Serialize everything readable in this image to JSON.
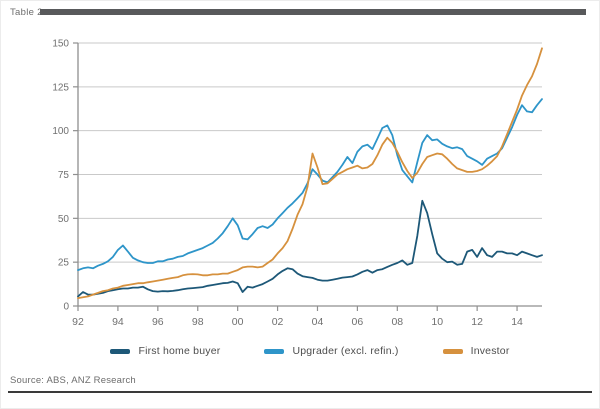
{
  "page": {
    "label": "Table 2",
    "source": "Source: ABS, ANZ Research"
  },
  "colors": {
    "header_bar": "#58595b",
    "gridline": "#c9c9c9",
    "axis": "#8f8f8f",
    "tick_label": "#707070",
    "first_home_buyer": "#1d5878",
    "upgrader": "#2e95c9",
    "investor": "#d6913e"
  },
  "chart_data": {
    "type": "line",
    "title": "",
    "xlabel": "",
    "ylabel": "",
    "ylim": [
      0,
      150
    ],
    "y_ticks": [
      0,
      25,
      50,
      75,
      100,
      125,
      150
    ],
    "xlim": [
      1992,
      2015.25
    ],
    "x_start": 1992,
    "x_step": 0.25,
    "x_tick_years": [
      1992,
      1994,
      1996,
      1998,
      2000,
      2002,
      2004,
      2006,
      2008,
      2010,
      2012,
      2014
    ],
    "x_tick_labels": [
      "92",
      "94",
      "96",
      "98",
      "00",
      "02",
      "04",
      "06",
      "08",
      "10",
      "12",
      "14"
    ],
    "grid": "horizontal",
    "legend_position": "bottom",
    "series": [
      {
        "name": "First home buyer",
        "color": "#1d5878",
        "values": [
          5.5,
          8,
          6.5,
          6.5,
          7,
          7.5,
          8.5,
          9,
          9.5,
          10,
          10,
          10.5,
          10.5,
          11,
          9.5,
          8.5,
          8.2,
          8.5,
          8.4,
          8.6,
          9,
          9.5,
          10,
          10.2,
          10.5,
          10.8,
          11.5,
          12,
          12.5,
          13,
          13.2,
          14,
          13,
          8,
          11,
          10.5,
          11.5,
          12.5,
          14,
          15.5,
          18,
          20,
          21.5,
          21,
          18.5,
          17,
          16.5,
          16,
          15,
          14.5,
          14.5,
          15,
          15.5,
          16.2,
          16.5,
          16.8,
          18,
          19.5,
          20.5,
          19,
          20.5,
          21,
          22.3,
          23.5,
          24.5,
          26,
          23.5,
          24.5,
          40,
          60,
          53,
          41,
          30,
          27,
          25,
          25.3,
          23.5,
          24,
          31,
          32,
          28,
          33,
          29,
          28,
          31,
          31,
          30,
          30,
          29,
          31,
          30,
          29,
          28,
          29
        ]
      },
      {
        "name": "Upgrader (excl. refin.)",
        "color": "#2e95c9",
        "values": [
          20.5,
          21.5,
          22,
          21.5,
          23,
          24,
          25.5,
          28,
          32,
          34.5,
          31,
          27.5,
          26,
          25,
          24.5,
          24.5,
          25.5,
          25.5,
          26.5,
          27,
          28,
          28.5,
          30,
          31,
          32,
          33,
          34.5,
          36,
          38.5,
          41.5,
          45.5,
          50,
          46,
          38.5,
          38,
          41,
          44.5,
          45.5,
          44.5,
          46.5,
          50,
          53,
          56,
          58.5,
          61.5,
          64.5,
          70,
          78,
          75,
          71.5,
          70.5,
          73.5,
          76.5,
          80.5,
          85,
          81.5,
          88,
          91,
          92,
          89.5,
          95.5,
          101.5,
          103,
          97.5,
          86,
          77.5,
          74,
          70.5,
          82,
          93,
          97.5,
          94.5,
          95,
          92.5,
          91,
          90,
          90.5,
          89.5,
          85.5,
          84,
          82.5,
          80.5,
          84,
          85.5,
          87,
          90,
          96,
          102,
          109,
          114.5,
          111,
          110.5,
          114.5,
          118
        ]
      },
      {
        "name": "Investor",
        "color": "#d6913e",
        "values": [
          4.5,
          5,
          5.5,
          6.5,
          7.5,
          8.5,
          9,
          10,
          10.5,
          11.5,
          12,
          12.5,
          13,
          13,
          13.5,
          14,
          14.5,
          15,
          15.5,
          16,
          16.5,
          17.5,
          18,
          18.2,
          18,
          17.5,
          17.5,
          18,
          18,
          18.5,
          18.5,
          19.5,
          20.5,
          22,
          22.5,
          22.5,
          22,
          22.5,
          24.5,
          26.5,
          30,
          33,
          37,
          44,
          52,
          58,
          68,
          87,
          79,
          69.5,
          70,
          72.5,
          75,
          76.5,
          78,
          79,
          80,
          78.5,
          79,
          81,
          86,
          92,
          96,
          93,
          88,
          82,
          77,
          73,
          76,
          81,
          85,
          86,
          87,
          86.5,
          84,
          81,
          78.5,
          77.5,
          76.5,
          76.5,
          77,
          78,
          80,
          82.5,
          85.5,
          91,
          98,
          105,
          112,
          120,
          126,
          131,
          138,
          147
        ]
      }
    ]
  }
}
